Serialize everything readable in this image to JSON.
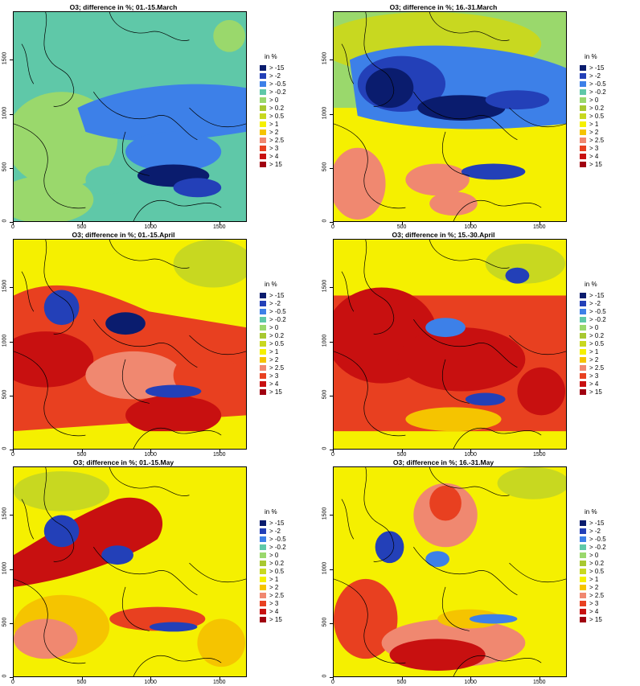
{
  "titles": [
    "O3; difference in %; 01.-15.March",
    "O3; difference in %; 16.-31.March",
    "O3; difference in %; 01.-15.April",
    "O3; difference in %; 15.-30.April",
    "O3; difference in %; 01.-15.May",
    "O3; difference in %; 16.-31.May"
  ],
  "legend": {
    "title": "in %",
    "items": [
      {
        "label": "> -15",
        "color": "#0a1c6e"
      },
      {
        "label": "> -2",
        "color": "#2340b8"
      },
      {
        "label": "> -0.5",
        "color": "#3d80e8"
      },
      {
        "label": "> -0.2",
        "color": "#5fc8a8"
      },
      {
        "label": "> 0",
        "color": "#9ad86c"
      },
      {
        "label": "> 0.2",
        "color": "#a8c830"
      },
      {
        "label": "> 0.5",
        "color": "#c8d820"
      },
      {
        "label": "> 1",
        "color": "#f5f000"
      },
      {
        "label": "> 2",
        "color": "#f5c400"
      },
      {
        "label": "> 2.5",
        "color": "#f08870"
      },
      {
        "label": "> 3",
        "color": "#e84020"
      },
      {
        "label": "> 4",
        "color": "#c81010"
      },
      {
        "label": "> 15",
        "color": "#a00010"
      }
    ]
  },
  "axes": {
    "yticks": [
      "0",
      "500",
      "1000",
      "1500"
    ],
    "xticks": [
      "0",
      "500",
      "1000",
      "1500"
    ]
  }
}
